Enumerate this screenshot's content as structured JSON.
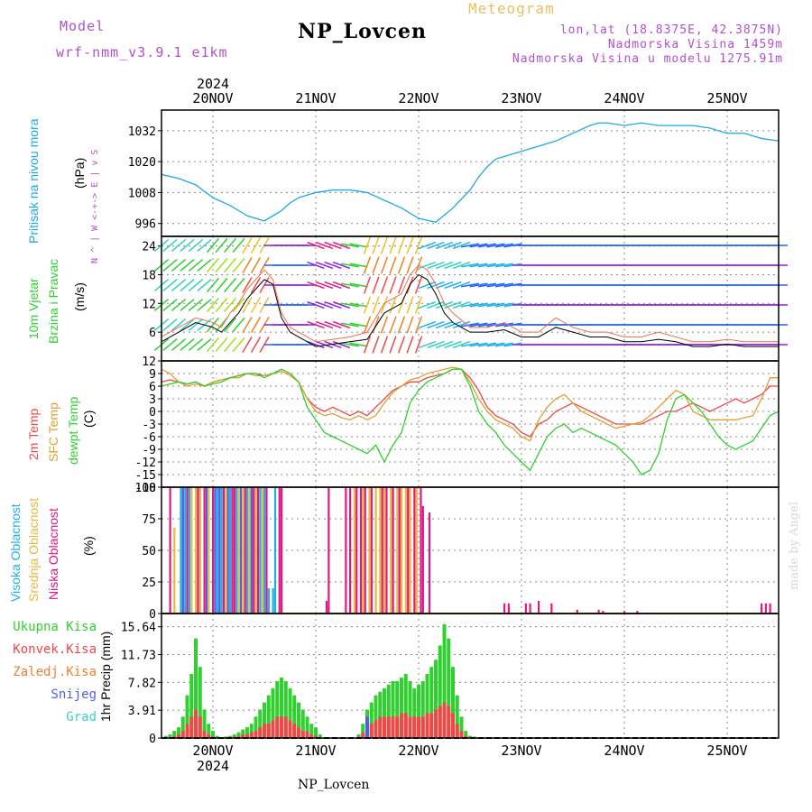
{
  "header": {
    "model_label": "Model",
    "model_name": "wrf-nmm_v3.9.1  e1km",
    "title": "NP_Lovcen",
    "meteogram_label": "Meteogram",
    "lonlat": "lon,lat (18.8375E, 42.3875N)",
    "elevation": "Nadmorska Visina 1459m",
    "model_elevation": "Nadmorska Visina u modelu 1275.91m"
  },
  "footer": {
    "station": "NP_Lovcen",
    "credit": "made by Angel"
  },
  "time_axis": {
    "year": "2024",
    "day_labels": [
      "20NOV",
      "21NOV",
      "22NOV",
      "23NOV",
      "24NOV",
      "25NOV"
    ],
    "day_hours": [
      12,
      36,
      60,
      84,
      108,
      132
    ],
    "range_hours": [
      0,
      144
    ]
  },
  "chart_data": [
    {
      "type": "line",
      "panel": "pressure",
      "ylabel_main": "Pritisak na nivou mora",
      "unit": "(hPa)",
      "yticks": [
        "996",
        "1008",
        "1020",
        "1032"
      ],
      "ytick_values": [
        996,
        1008,
        1020,
        1032
      ],
      "ylim": [
        991,
        1040
      ],
      "colors": {
        "line": "#20a8e8"
      },
      "x": [
        0,
        4,
        8,
        12,
        16,
        20,
        24,
        28,
        30,
        32,
        34,
        36,
        40,
        44,
        48,
        52,
        56,
        60,
        64,
        68,
        72,
        74,
        76,
        78,
        80,
        84,
        88,
        92,
        96,
        100,
        102,
        104,
        108,
        112,
        116,
        120,
        124,
        128,
        132,
        136,
        140,
        144
      ],
      "values": [
        1015,
        1013.5,
        1011,
        1006,
        1003,
        999,
        997,
        1001,
        1004,
        1006,
        1007,
        1008,
        1009,
        1009,
        1008,
        1005,
        1002,
        998,
        996.5,
        1002,
        1009,
        1014,
        1018,
        1021,
        1022,
        1024,
        1026,
        1028,
        1031,
        1034,
        1035,
        1035,
        1034,
        1035,
        1034,
        1034,
        1034,
        1033,
        1031,
        1031,
        1029,
        1028
      ]
    },
    {
      "type": "line",
      "panel": "wind",
      "ylabel_main": "10m Vjetar",
      "ylabel_sub": "Brzina i Pravac",
      "unit": "(m/s)",
      "compass": "N\n^\n|\nW <-+-> E\n|\nv\nS",
      "yticks": [
        "6",
        "12",
        "18",
        "24"
      ],
      "ytick_values": [
        6,
        12,
        18,
        24
      ],
      "ylim": [
        0,
        26
      ],
      "x": [
        0,
        4,
        8,
        12,
        14,
        16,
        18,
        20,
        22,
        24,
        26,
        28,
        30,
        32,
        34,
        36,
        40,
        44,
        48,
        52,
        56,
        58,
        60,
        62,
        64,
        66,
        68,
        72,
        76,
        80,
        84,
        88,
        92,
        96,
        100,
        104,
        108,
        112,
        116,
        120,
        124,
        128,
        132,
        136,
        140,
        144
      ],
      "series": [
        {
          "name": "wind_speed",
          "values": [
            4,
            6,
            8,
            7,
            6,
            8,
            10,
            13,
            15,
            17,
            16,
            9,
            6,
            5,
            4,
            3,
            3.5,
            4,
            4.5,
            10,
            12,
            16,
            18,
            17,
            14,
            10,
            8,
            6,
            6,
            6.5,
            5,
            5,
            7,
            6,
            5,
            5,
            4,
            4,
            4.5,
            4,
            3,
            3,
            3.5,
            3,
            3,
            3
          ]
        },
        {
          "name": "gust",
          "values": [
            5,
            7,
            9,
            8,
            7,
            10,
            12,
            15,
            17,
            19,
            17,
            10,
            7,
            6,
            5,
            4,
            4.5,
            5,
            6,
            12,
            14,
            18,
            20,
            19,
            16,
            12,
            10,
            7,
            7,
            8,
            6,
            6,
            9,
            7,
            6,
            6,
            5,
            5,
            6,
            5,
            4,
            4,
            4.5,
            4,
            4,
            4
          ]
        }
      ]
    },
    {
      "type": "line",
      "panel": "temperature",
      "ylabel_a": "2m Temp",
      "ylabel_b": "SFC Temp",
      "ylabel_c": "dewpt Temp",
      "unit": "(C)",
      "yticks": [
        "12",
        "9",
        "6",
        "3",
        "0",
        "-3",
        "-6",
        "-9",
        "-12",
        "-15",
        "-18"
      ],
      "ytick_values": [
        12,
        9,
        6,
        3,
        0,
        -3,
        -6,
        -9,
        -12,
        -15,
        -18
      ],
      "ylim": [
        -18,
        12
      ],
      "x": [
        0,
        2,
        4,
        6,
        8,
        10,
        12,
        14,
        16,
        18,
        20,
        22,
        24,
        26,
        28,
        30,
        32,
        34,
        36,
        38,
        40,
        42,
        44,
        46,
        48,
        50,
        52,
        54,
        56,
        58,
        60,
        62,
        64,
        66,
        68,
        70,
        72,
        74,
        76,
        78,
        80,
        82,
        84,
        86,
        88,
        90,
        92,
        94,
        96,
        98,
        100,
        102,
        104,
        106,
        108,
        110,
        112,
        114,
        116,
        118,
        120,
        122,
        124,
        126,
        128,
        130,
        132,
        134,
        136,
        138,
        140,
        142,
        144
      ],
      "series": [
        {
          "name": "2m Temp",
          "color": "#f04848",
          "values": [
            7,
            7.5,
            7,
            6.5,
            7,
            6,
            7,
            7.5,
            8,
            8.5,
            9,
            9,
            8.5,
            9,
            10,
            9,
            7,
            3,
            1,
            0,
            1,
            0,
            -1,
            0,
            -1,
            1,
            3,
            5,
            6,
            7,
            7,
            8,
            8.5,
            9,
            10,
            10,
            8,
            5,
            1,
            -1,
            -2,
            -3,
            -5,
            -6,
            -3,
            -2,
            0,
            1,
            2,
            1,
            0,
            -1,
            -2,
            -3,
            -3,
            -3,
            -3,
            -2,
            -1,
            0,
            0,
            1,
            2,
            1,
            0,
            1,
            2,
            3,
            2,
            3,
            4,
            6,
            6
          ]
        },
        {
          "name": "SFC Temp",
          "color": "#e0a030",
          "values": [
            10,
            9,
            7,
            6,
            6.5,
            6,
            7,
            7.5,
            8,
            8,
            9,
            8.5,
            8.5,
            9,
            9.5,
            8.5,
            7,
            3,
            0,
            -1,
            -0.5,
            -1.5,
            -2,
            -1,
            -2,
            -1,
            2,
            4.5,
            6,
            7.5,
            8,
            9,
            9.5,
            10,
            10.5,
            10,
            7,
            3,
            0,
            -2,
            -3,
            -4,
            -6,
            -7,
            -2,
            1,
            3,
            4,
            2,
            0,
            -1,
            -2,
            -3,
            -4,
            -3.5,
            -3,
            -2.5,
            -1,
            1,
            3,
            5,
            4,
            0,
            -1,
            -2,
            -2,
            -2,
            -2,
            -1.5,
            -1,
            3,
            8,
            8
          ]
        },
        {
          "name": "dewpt Temp",
          "color": "#30d030",
          "values": [
            6,
            6.5,
            7,
            6.5,
            7,
            6,
            6.5,
            7,
            8,
            8.5,
            9,
            9,
            8,
            9,
            10,
            9,
            7,
            1,
            -2,
            -5,
            -6,
            -7,
            -8,
            -9,
            -10,
            -8,
            -12,
            -8,
            -5,
            2,
            5,
            7,
            8,
            9,
            10,
            10,
            6,
            0,
            -3,
            -5,
            -8,
            -10,
            -12,
            -14,
            -10,
            -6,
            -4,
            -3,
            -5,
            -4,
            -5,
            -6,
            -7,
            -8,
            -10,
            -12,
            -15,
            -14,
            -10,
            -2,
            3,
            4,
            2,
            0,
            -3,
            -6,
            -8,
            -9,
            -8,
            -7,
            -4,
            -1,
            0
          ]
        }
      ]
    },
    {
      "type": "bar",
      "panel": "cloud",
      "ylabel_a": "Visoka Oblacnost",
      "ylabel_b": "Srednja Oblacnost",
      "ylabel_c": "Niska Oblacnost",
      "unit": "(%)",
      "yticks": [
        "0",
        "25",
        "50",
        "75",
        "100"
      ],
      "ytick_values": [
        0,
        25,
        50,
        75,
        100
      ],
      "ylim": [
        0,
        100
      ],
      "series": [
        {
          "name": "Visoka Oblacnost",
          "color": "#20b0e8",
          "x": [
            4.5,
            5.5,
            6.5,
            13,
            14,
            16,
            17.5,
            20,
            21,
            23,
            24,
            25,
            26,
            26.5
          ],
          "values": [
            100,
            100,
            100,
            100,
            100,
            100,
            100,
            100,
            100,
            100,
            100,
            20,
            20,
            100
          ]
        },
        {
          "name": "Srednja Oblacnost",
          "color": "#e8b840",
          "x": [
            3,
            5,
            7,
            8,
            9,
            11,
            15,
            18,
            19,
            20.5,
            22,
            23.5,
            45,
            47,
            48.5,
            50,
            51,
            52,
            53.5,
            55,
            56,
            57,
            58,
            59.5
          ],
          "values": [
            68,
            100,
            100,
            100,
            100,
            100,
            100,
            100,
            100,
            100,
            100,
            100,
            100,
            100,
            100,
            100,
            100,
            100,
            100,
            100,
            100,
            100,
            100,
            100
          ]
        },
        {
          "name": "Niska Oblacnost",
          "color": "#e01880",
          "x": [
            2,
            6,
            8.5,
            10,
            12,
            14.5,
            16.5,
            17,
            19.5,
            21.5,
            22.5,
            24.5,
            27.5,
            28,
            38.5,
            39,
            43,
            44,
            45.5,
            46.5,
            47.5,
            49,
            51.5,
            52.5,
            54,
            55.5,
            57.5,
            59,
            60.5,
            61,
            62.5,
            80,
            81,
            85,
            86,
            88,
            91,
            97,
            102,
            103,
            108,
            111,
            140,
            141,
            142
          ],
          "values": [
            100,
            100,
            100,
            100,
            100,
            100,
            100,
            100,
            100,
            100,
            100,
            100,
            100,
            100,
            10,
            100,
            100,
            100,
            100,
            100,
            100,
            100,
            100,
            100,
            100,
            100,
            100,
            100,
            100,
            85,
            80,
            8,
            8,
            8,
            8,
            10,
            8,
            3,
            3,
            2,
            2,
            2,
            8,
            8,
            8
          ]
        },
        {
          "name": "mix-blue",
          "color": "#5060e0",
          "x": [
            5,
            10.5,
            12.5,
            13.5,
            15.5,
            18.5,
            21
          ],
          "values": [
            100,
            100,
            100,
            100,
            100,
            100,
            100
          ]
        }
      ]
    },
    {
      "type": "bar",
      "panel": "precipitation",
      "ylabel": "1hr Precip (mm)",
      "legend": [
        "Ukupna Kisa",
        "Konvek.Kisa",
        "Zaledj.Kisa",
        "Snijeg",
        "Grad"
      ],
      "legend_colors": [
        "#30d030",
        "#f04848",
        "#f08030",
        "#5060e0",
        "#40d0c0"
      ],
      "yticks": [
        "0",
        "3.91",
        "7.82",
        "11.73",
        "15.64"
      ],
      "ytick_values": [
        0,
        3.91,
        7.82,
        11.73,
        15.64
      ],
      "ylim": [
        0,
        17.5
      ],
      "x": [
        1,
        2,
        3,
        4,
        5,
        6,
        7,
        8,
        9,
        10,
        11,
        12,
        13,
        14,
        15,
        16,
        17,
        18,
        19,
        20,
        21,
        22,
        23,
        24,
        25,
        26,
        27,
        28,
        29,
        30,
        31,
        32,
        33,
        34,
        35,
        36,
        37,
        46,
        47,
        48,
        49,
        50,
        51,
        52,
        53,
        54,
        55,
        56,
        57,
        58,
        59,
        60,
        61,
        62,
        63,
        64,
        65,
        66,
        67,
        68,
        69,
        70,
        71,
        72,
        73,
        74
      ],
      "series": [
        {
          "name": "Ukupna Kisa",
          "values": [
            0.3,
            0.5,
            1,
            1.5,
            3,
            6,
            9,
            14,
            10,
            4,
            2,
            1,
            0.3,
            0.1,
            0.2,
            0.3,
            0.5,
            0.8,
            1.2,
            1.5,
            2,
            3,
            4,
            5,
            6,
            7,
            8,
            8.5,
            8,
            7,
            6,
            5,
            4,
            3,
            2,
            1.5,
            0.5,
            0.5,
            2,
            4,
            5,
            6,
            6.5,
            7,
            7.5,
            8,
            8,
            8.5,
            9,
            8,
            7,
            7.5,
            8,
            9,
            10,
            11,
            13,
            16,
            14,
            10,
            6,
            3,
            1,
            0.3,
            0.2,
            0.1
          ]
        },
        {
          "name": "Konvek.Kisa",
          "values": [
            0,
            0.1,
            0.3,
            0.5,
            1,
            2,
            3,
            4,
            3,
            1,
            0.5,
            0.2,
            0,
            0,
            0,
            0.1,
            0.2,
            0.3,
            0.5,
            0.5,
            0.8,
            1,
            1.5,
            2,
            2,
            2.5,
            3,
            3,
            3,
            2.5,
            2,
            1.5,
            1,
            1,
            0.5,
            0.3,
            0,
            0.2,
            0.8,
            1.5,
            2,
            2.5,
            3,
            3,
            3,
            3,
            3,
            3.5,
            3.5,
            3,
            3,
            3,
            3,
            3.5,
            3.5,
            4,
            4.5,
            5,
            4.5,
            3.5,
            2,
            1,
            0.3,
            0.1,
            0,
            0
          ]
        },
        {
          "name": "Snijeg",
          "values": [
            0,
            0,
            0,
            0,
            0,
            0,
            0,
            0,
            0,
            0,
            0,
            0,
            0,
            0,
            0,
            0,
            0,
            0,
            0,
            0,
            0,
            0,
            0,
            0,
            0,
            0,
            0,
            0,
            0,
            0,
            0,
            0,
            0,
            0,
            0,
            0,
            0,
            0,
            0,
            3,
            0,
            0,
            0,
            0,
            0,
            0,
            0,
            0,
            0,
            0,
            0,
            0,
            0,
            0,
            0,
            0,
            0,
            0,
            0,
            0,
            0,
            0,
            0,
            0,
            0,
            0
          ]
        }
      ]
    }
  ]
}
